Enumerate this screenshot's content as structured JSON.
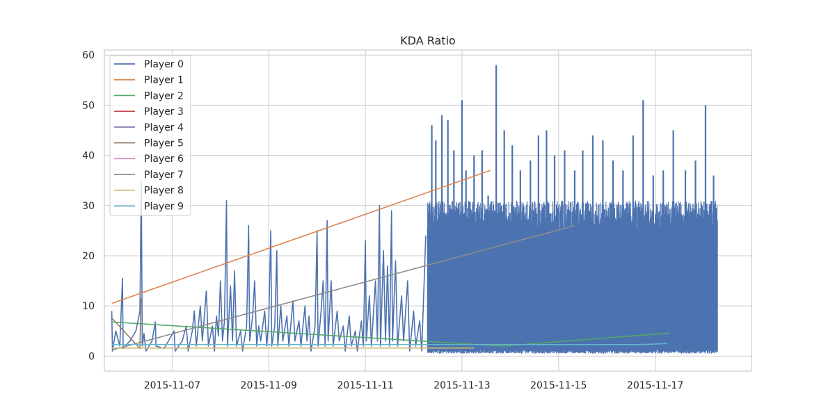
{
  "chart_data": {
    "type": "line",
    "title": "KDA Ratio",
    "xlabel": "",
    "ylabel": "",
    "x_ticks": [
      "2015-11-07",
      "2015-11-09",
      "2015-11-11",
      "2015-11-13",
      "2015-11-15",
      "2015-11-17"
    ],
    "y_ticks": [
      "0",
      "10",
      "20",
      "30",
      "40",
      "50",
      "60"
    ],
    "xlim": [
      "2015-11-05T14:20",
      "2015-11-18T23:50"
    ],
    "ylim": [
      -3,
      61
    ],
    "grid": true,
    "legend_position": "top-left",
    "series": [
      {
        "name": "Player 0",
        "color": "#4c72b0",
        "dense_band": {
          "x_start": "2015-11-12T06:50",
          "x_end": "2015-11-18T07:00",
          "y_min": 0.5,
          "y_max": 31
        },
        "points": [
          [
            "2015-11-05T18:00",
            9
          ],
          [
            "2015-11-05T18:20",
            1
          ],
          [
            "2015-11-05T20:00",
            5
          ],
          [
            "2015-11-05T22:00",
            2
          ],
          [
            "2015-11-05T23:20",
            15.5
          ],
          [
            "2015-11-05T23:40",
            1.5
          ],
          [
            "2015-11-06T03:00",
            3
          ],
          [
            "2015-11-06T06:00",
            5
          ],
          [
            "2015-11-06T08:00",
            9
          ],
          [
            "2015-11-06T08:40",
            35
          ],
          [
            "2015-11-06T09:10",
            2
          ],
          [
            "2015-11-06T10:00",
            4.5
          ],
          [
            "2015-11-06T11:00",
            1
          ],
          [
            "2015-11-06T14:00",
            3
          ],
          [
            "2015-11-06T15:40",
            6.8
          ],
          [
            "2015-11-06T16:00",
            2
          ],
          [
            "2015-11-06T20:00",
            1.5
          ],
          [
            "2015-11-07T01:00",
            5
          ],
          [
            "2015-11-07T01:30",
            1
          ],
          [
            "2015-11-07T05:00",
            3
          ],
          [
            "2015-11-07T07:00",
            6
          ],
          [
            "2015-11-07T08:00",
            1
          ],
          [
            "2015-11-07T10:00",
            5
          ],
          [
            "2015-11-07T11:00",
            9
          ],
          [
            "2015-11-07T12:00",
            2
          ],
          [
            "2015-11-07T14:00",
            10
          ],
          [
            "2015-11-07T15:00",
            3
          ],
          [
            "2015-11-07T17:00",
            13
          ],
          [
            "2015-11-07T18:00",
            2
          ],
          [
            "2015-11-07T20:00",
            6
          ],
          [
            "2015-11-07T21:00",
            1
          ],
          [
            "2015-11-07T22:00",
            8
          ],
          [
            "2015-11-07T23:00",
            4
          ],
          [
            "2015-11-08T00:00",
            15
          ],
          [
            "2015-11-08T01:00",
            3
          ],
          [
            "2015-11-08T02:00",
            7
          ],
          [
            "2015-11-08T03:00",
            31
          ],
          [
            "2015-11-08T03:30",
            2
          ],
          [
            "2015-11-08T05:00",
            14
          ],
          [
            "2015-11-08T06:00",
            3
          ],
          [
            "2015-11-08T07:00",
            17
          ],
          [
            "2015-11-08T08:00",
            2
          ],
          [
            "2015-11-08T10:00",
            5
          ],
          [
            "2015-11-08T11:00",
            1
          ],
          [
            "2015-11-08T13:00",
            6
          ],
          [
            "2015-11-08T14:00",
            26
          ],
          [
            "2015-11-08T14:30",
            3
          ],
          [
            "2015-11-08T16:00",
            8
          ],
          [
            "2015-11-08T17:00",
            15
          ],
          [
            "2015-11-08T18:00",
            2
          ],
          [
            "2015-11-08T19:00",
            6
          ],
          [
            "2015-11-08T20:00",
            3
          ],
          [
            "2015-11-08T22:00",
            9
          ],
          [
            "2015-11-08T23:00",
            2
          ],
          [
            "2015-11-09T00:00",
            7
          ],
          [
            "2015-11-09T01:00",
            25
          ],
          [
            "2015-11-09T01:30",
            2
          ],
          [
            "2015-11-09T03:00",
            6
          ],
          [
            "2015-11-09T04:00",
            21
          ],
          [
            "2015-11-09T04:30",
            2
          ],
          [
            "2015-11-09T06:00",
            10
          ],
          [
            "2015-11-09T07:00",
            3
          ],
          [
            "2015-11-09T09:00",
            8
          ],
          [
            "2015-11-09T10:00",
            2
          ],
          [
            "2015-11-09T12:00",
            11
          ],
          [
            "2015-11-09T13:00",
            3
          ],
          [
            "2015-11-09T15:00",
            7
          ],
          [
            "2015-11-09T16:00",
            2
          ],
          [
            "2015-11-09T18:00",
            10
          ],
          [
            "2015-11-09T19:00",
            3
          ],
          [
            "2015-11-09T20:00",
            8
          ],
          [
            "2015-11-09T21:00",
            1
          ],
          [
            "2015-11-09T23:00",
            6
          ],
          [
            "2015-11-10T00:00",
            25
          ],
          [
            "2015-11-10T00:30",
            2
          ],
          [
            "2015-11-10T02:00",
            9
          ],
          [
            "2015-11-10T03:00",
            15
          ],
          [
            "2015-11-10T04:00",
            2
          ],
          [
            "2015-11-10T05:00",
            27
          ],
          [
            "2015-11-10T05:30",
            3
          ],
          [
            "2015-11-10T07:00",
            15
          ],
          [
            "2015-11-10T08:00",
            2
          ],
          [
            "2015-11-10T10:00",
            9
          ],
          [
            "2015-11-10T11:00",
            3
          ],
          [
            "2015-11-10T13:00",
            6
          ],
          [
            "2015-11-10T14:00",
            1
          ],
          [
            "2015-11-10T16:00",
            8
          ],
          [
            "2015-11-10T17:00",
            2
          ],
          [
            "2015-11-10T19:00",
            5
          ],
          [
            "2015-11-10T20:00",
            1
          ],
          [
            "2015-11-10T22:00",
            7
          ],
          [
            "2015-11-10T23:00",
            2
          ],
          [
            "2015-11-11T00:00",
            23
          ],
          [
            "2015-11-11T00:30",
            3
          ],
          [
            "2015-11-11T02:00",
            12
          ],
          [
            "2015-11-11T03:00",
            2
          ],
          [
            "2015-11-11T05:00",
            15
          ],
          [
            "2015-11-11T06:00",
            3
          ],
          [
            "2015-11-11T07:00",
            30
          ],
          [
            "2015-11-11T07:30",
            2
          ],
          [
            "2015-11-11T09:00",
            21
          ],
          [
            "2015-11-11T10:00",
            3
          ],
          [
            "2015-11-11T11:00",
            18
          ],
          [
            "2015-11-11T12:00",
            2
          ],
          [
            "2015-11-11T13:00",
            29
          ],
          [
            "2015-11-11T13:30",
            3
          ],
          [
            "2015-11-11T15:00",
            19
          ],
          [
            "2015-11-11T16:00",
            2
          ],
          [
            "2015-11-11T18:00",
            12
          ],
          [
            "2015-11-11T19:00",
            3
          ],
          [
            "2015-11-11T21:00",
            15
          ],
          [
            "2015-11-11T22:00",
            1
          ],
          [
            "2015-11-12T00:00",
            9
          ],
          [
            "2015-11-12T01:00",
            2
          ],
          [
            "2015-11-12T03:00",
            7
          ],
          [
            "2015-11-12T04:00",
            1
          ],
          [
            "2015-11-12T06:00",
            24
          ]
        ],
        "peaks": [
          [
            "2015-11-12T09:00",
            46
          ],
          [
            "2015-11-12T11:00",
            43
          ],
          [
            "2015-11-12T14:00",
            48
          ],
          [
            "2015-11-12T17:00",
            47
          ],
          [
            "2015-11-12T20:00",
            41
          ],
          [
            "2015-11-13T00:00",
            51
          ],
          [
            "2015-11-13T02:00",
            37
          ],
          [
            "2015-11-13T06:00",
            40
          ],
          [
            "2015-11-13T10:00",
            41
          ],
          [
            "2015-11-13T13:00",
            32
          ],
          [
            "2015-11-13T17:00",
            58
          ],
          [
            "2015-11-13T21:00",
            45
          ],
          [
            "2015-11-14T01:00",
            42
          ],
          [
            "2015-11-14T05:00",
            37
          ],
          [
            "2015-11-14T10:00",
            39
          ],
          [
            "2015-11-14T14:00",
            44
          ],
          [
            "2015-11-14T18:00",
            45
          ],
          [
            "2015-11-14T22:00",
            40
          ],
          [
            "2015-11-15T03:00",
            41
          ],
          [
            "2015-11-15T08:00",
            37
          ],
          [
            "2015-11-15T12:00",
            41
          ],
          [
            "2015-11-15T17:00",
            44
          ],
          [
            "2015-11-15T22:00",
            43
          ],
          [
            "2015-11-16T03:00",
            39
          ],
          [
            "2015-11-16T08:00",
            37
          ],
          [
            "2015-11-16T13:00",
            44
          ],
          [
            "2015-11-16T18:00",
            51
          ],
          [
            "2015-11-16T23:00",
            36
          ],
          [
            "2015-11-17T04:00",
            37
          ],
          [
            "2015-11-17T09:00",
            45
          ],
          [
            "2015-11-17T15:00",
            37
          ],
          [
            "2015-11-17T20:00",
            39
          ],
          [
            "2015-11-18T01:00",
            50
          ],
          [
            "2015-11-18T05:00",
            36
          ]
        ]
      },
      {
        "name": "Player 1",
        "color": "#dd8452",
        "points": [
          [
            "2015-11-05T18:00",
            10.5
          ],
          [
            "2015-11-13T14:00",
            37
          ]
        ]
      },
      {
        "name": "Player 2",
        "color": "#55a868",
        "points": [
          [
            "2015-11-05T18:00",
            6.8
          ],
          [
            "2015-11-13T20:00",
            2
          ],
          [
            "2015-11-17T07:00",
            4.6
          ]
        ]
      },
      {
        "name": "Player 3",
        "color": "#c44e52",
        "points": []
      },
      {
        "name": "Player 4",
        "color": "#8172b3",
        "points": []
      },
      {
        "name": "Player 5",
        "color": "#937860",
        "points": [
          [
            "2015-11-05T18:00",
            7.6
          ],
          [
            "2015-11-06T08:00",
            1.5
          ],
          [
            "2015-11-06T08:30",
            11.5
          ]
        ]
      },
      {
        "name": "Player 6",
        "color": "#da8bc3",
        "points": []
      },
      {
        "name": "Player 7",
        "color": "#8c8c8c",
        "points": [
          [
            "2015-11-05T18:00",
            1.2
          ],
          [
            "2015-11-15T08:00",
            26
          ]
        ]
      },
      {
        "name": "Player 8",
        "color": "#ccb974",
        "points": [
          [
            "2015-11-05T18:00",
            1.6
          ],
          [
            "2015-11-13T06:00",
            1.6
          ]
        ]
      },
      {
        "name": "Player 9",
        "color": "#64b5cd",
        "points": [
          [
            "2015-11-05T18:00",
            2.3
          ],
          [
            "2015-11-16T16:00",
            2.3
          ],
          [
            "2015-11-17T06:00",
            2.5
          ]
        ]
      }
    ]
  }
}
